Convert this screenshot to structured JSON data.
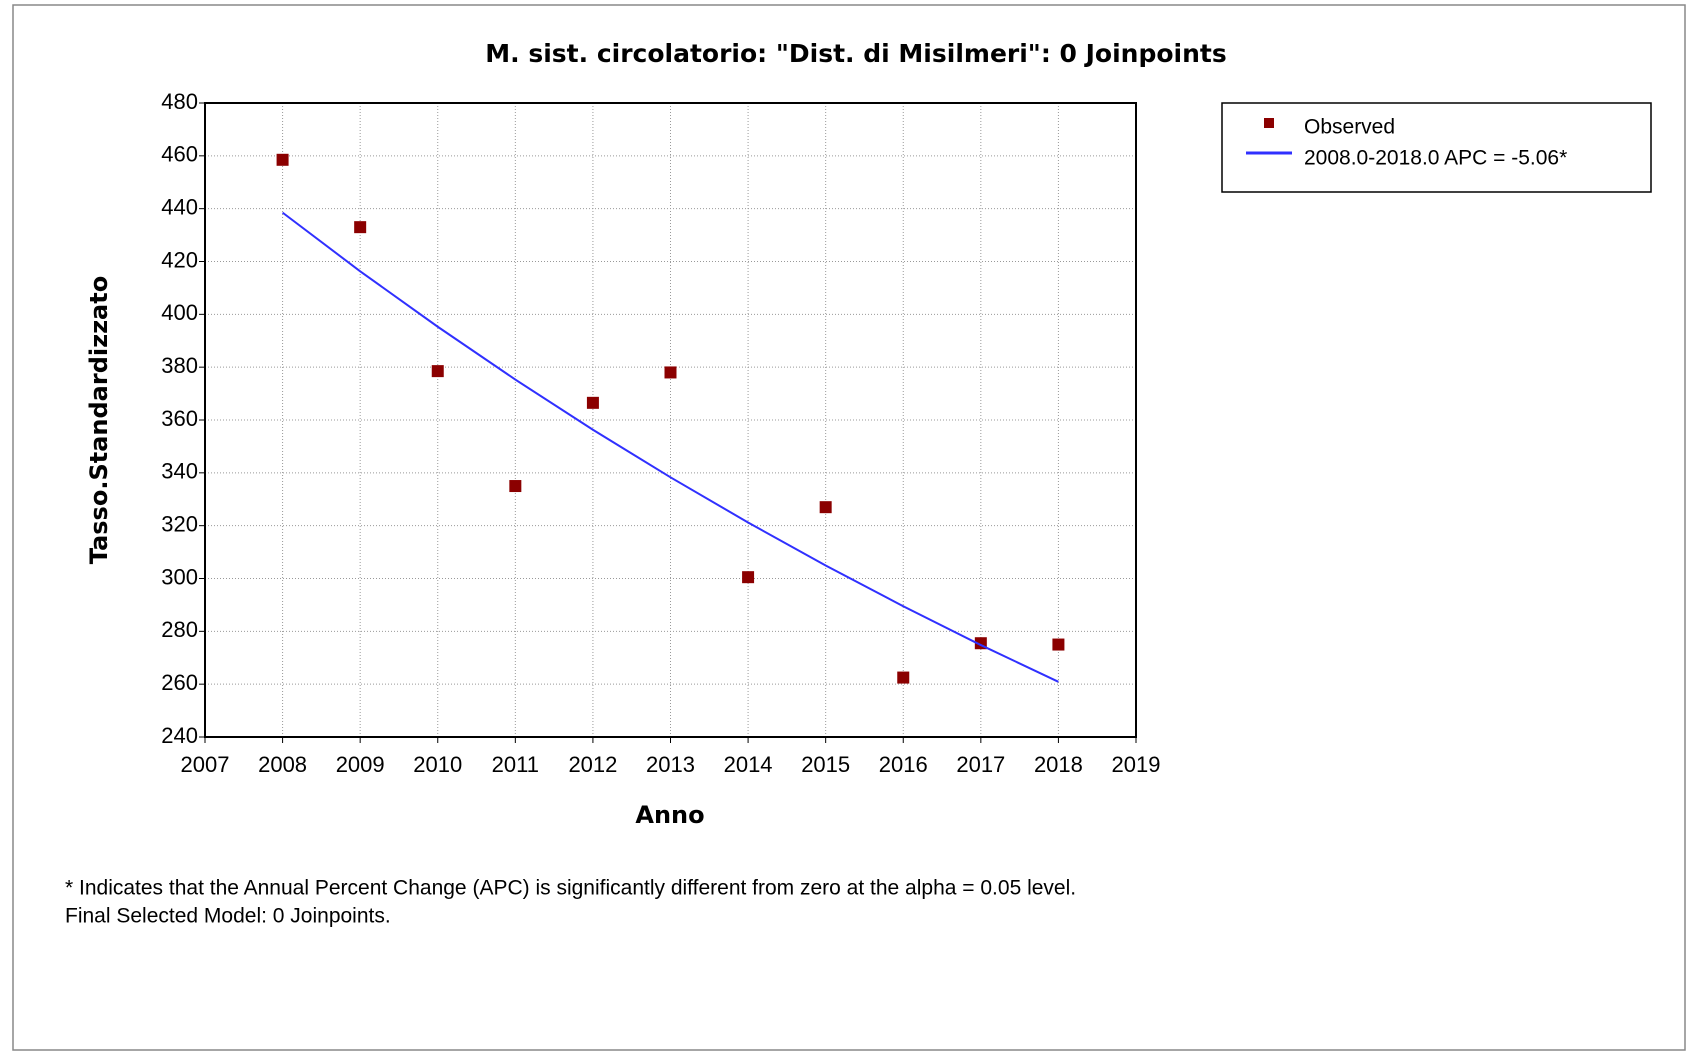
{
  "chart_data": {
    "type": "scatter",
    "title": "M. sist. circolatorio: \"Dist. di Misilmeri\": 0 Joinpoints",
    "x_label": "Anno",
    "y_label": "Tasso.Standardizzato",
    "xlim": [
      2007,
      2019
    ],
    "xticks": [
      2007,
      2008,
      2009,
      2010,
      2011,
      2012,
      2013,
      2014,
      2015,
      2016,
      2017,
      2018,
      2019
    ],
    "ylim": [
      240,
      480
    ],
    "yticks": [
      240,
      260,
      280,
      300,
      320,
      340,
      360,
      380,
      400,
      420,
      440,
      460,
      480
    ],
    "grid": true,
    "legend": "outside-right",
    "series": [
      {
        "name": "Observed",
        "type": "scatter",
        "color": "#8b0000",
        "x": [
          2008,
          2009,
          2010,
          2011,
          2012,
          2013,
          2014,
          2015,
          2016,
          2017,
          2018
        ],
        "values": [
          458.5,
          433,
          378.5,
          335,
          366.5,
          378,
          300.5,
          327,
          262.5,
          275.5,
          275
        ]
      },
      {
        "name": "2008.0-2018.0 APC  = -5.06*",
        "type": "line",
        "color": "#3030ff",
        "x": [
          2008,
          2009,
          2010,
          2011,
          2012,
          2013,
          2014,
          2015,
          2016,
          2017,
          2018
        ],
        "values": [
          438.5,
          416.3,
          395.3,
          375.3,
          356.3,
          338.3,
          321.2,
          304.9,
          289.5,
          274.8,
          260.9
        ]
      }
    ],
    "notes": [
      "* Indicates that the Annual Percent Change (APC) is significantly different from zero at the alpha = 0.05 level.",
      "Final Selected Model: 0 Joinpoints."
    ]
  }
}
